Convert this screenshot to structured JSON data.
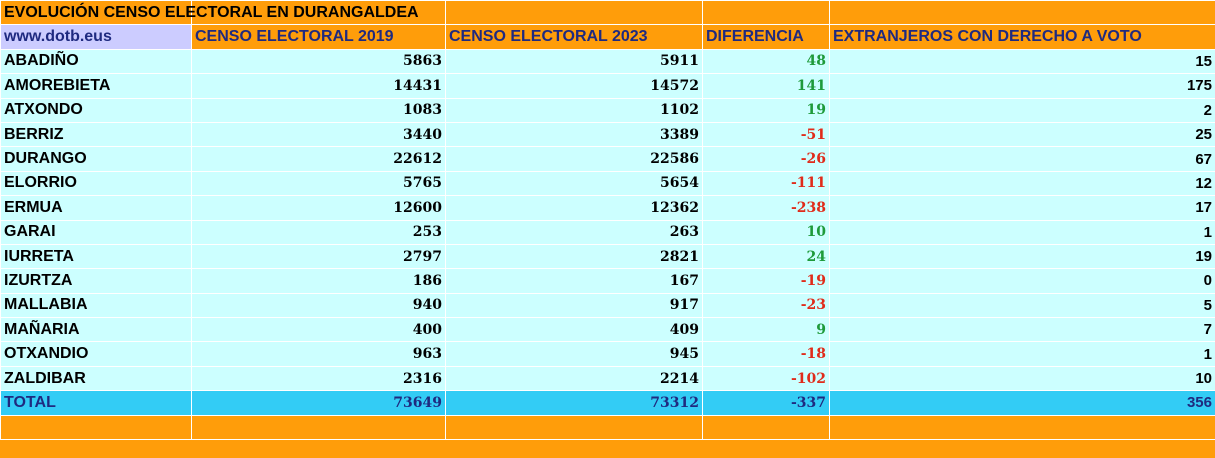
{
  "header": {
    "title": "EVOLUCIÓN CENSO ELECTORAL EN DURANGALDEA",
    "website": "www.dotb.eus"
  },
  "table": {
    "columns": [
      "CENSO ELECTORAL 2019",
      "CENSO ELECTORAL 2023",
      "DIFERENCIA",
      "EXTRANJEROS CON DERECHO A VOTO"
    ],
    "rows": [
      [
        "ABADIÑO",
        5863,
        5911,
        48,
        15
      ],
      [
        "AMOREBIETA",
        14431,
        14572,
        141,
        175
      ],
      [
        "ATXONDO",
        1083,
        1102,
        19,
        2
      ],
      [
        "BERRIZ",
        3440,
        3389,
        -51,
        25
      ],
      [
        "DURANGO",
        22612,
        22586,
        -26,
        67
      ],
      [
        "ELORRIO",
        5765,
        5654,
        -111,
        12
      ],
      [
        "ERMUA",
        12600,
        12362,
        -238,
        17
      ],
      [
        "GARAI",
        253,
        263,
        10,
        1
      ],
      [
        "IURRETA",
        2797,
        2821,
        24,
        19
      ],
      [
        "IZURTZA",
        186,
        167,
        -19,
        0
      ],
      [
        "MALLABIA",
        940,
        917,
        -23,
        5
      ],
      [
        "MAÑARIA",
        400,
        409,
        9,
        7
      ],
      [
        "OTXANDIO",
        963,
        945,
        -18,
        1
      ],
      [
        "ZALDIBAR",
        2316,
        2214,
        -102,
        10
      ]
    ],
    "total": [
      "TOTAL",
      73649,
      73312,
      -337,
      356
    ]
  }
}
